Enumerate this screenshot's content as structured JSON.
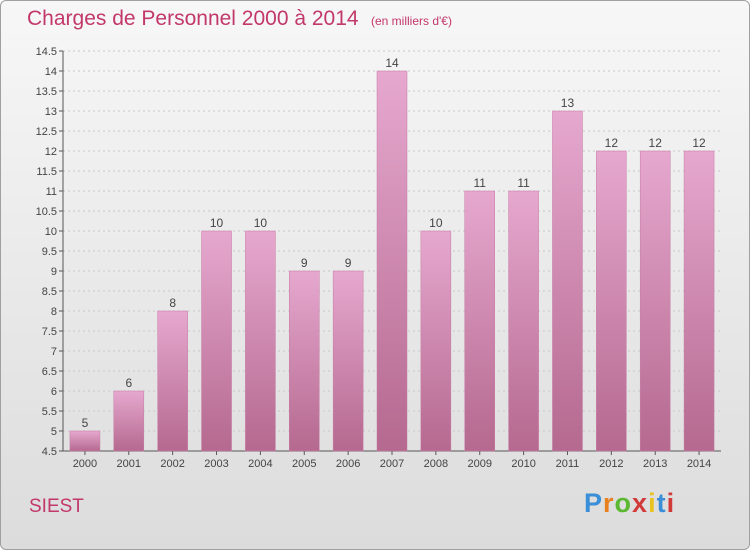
{
  "header": {
    "title": "Charges de Personnel 2000 à 2014",
    "subtitle": "(en milliers d'€)"
  },
  "footer": {
    "commune": "SIEST",
    "logo_text": "Proxiti",
    "logo_colors": [
      "#3a8fd8",
      "#e8801e",
      "#5bb830",
      "#d23a3a",
      "#e8c21e",
      "#3a8fd8",
      "#d23a3a"
    ]
  },
  "colors": {
    "bar_top": "#e6a8cf",
    "bar_bottom": "#b5698f",
    "label": "#444444",
    "brand": "#c2386a"
  },
  "chart_data": {
    "type": "bar",
    "categories": [
      "2000",
      "2001",
      "2002",
      "2003",
      "2004",
      "2005",
      "2006",
      "2007",
      "2008",
      "2009",
      "2010",
      "2011",
      "2012",
      "2013",
      "2014"
    ],
    "values": [
      5,
      6,
      8,
      10,
      10,
      9,
      9,
      14,
      10,
      11,
      11,
      13,
      12,
      12,
      12
    ],
    "value_labels": [
      "5",
      "6",
      "8",
      "10",
      "10",
      "9",
      "9",
      "14",
      "10",
      "11",
      "11",
      "13",
      "12",
      "12",
      "12"
    ],
    "yticks": [
      "4.5",
      "5",
      "5.5",
      "6",
      "6.5",
      "7",
      "7.5",
      "8",
      "8.5",
      "9",
      "9.5",
      "10",
      "10.5",
      "11",
      "11.5",
      "12",
      "12.5",
      "13",
      "13.5",
      "14",
      "14.5"
    ],
    "ylim": [
      4.5,
      14.5
    ],
    "grid": true,
    "title": "Charges de Personnel 2000 à 2014",
    "xlabel": "",
    "ylabel": ""
  }
}
